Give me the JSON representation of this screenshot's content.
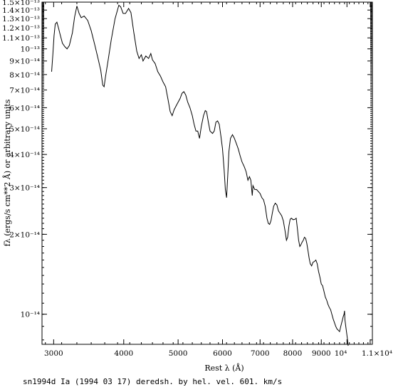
{
  "chart_data": {
    "type": "line",
    "title": "",
    "xlabel": "Rest λ (Å)",
    "ylabel": "fλ (ergs/s cm**2 Å) or arbitrary units",
    "caption": "sn1994d Ia (1994 03 17) deredsh. by hel. vel.   601. km/s",
    "x_scale": "log",
    "y_scale": "log",
    "xlim": [
      2860,
      11100
    ],
    "ylim": [
      7.7e-15,
      1.5e-13
    ],
    "x_ticks": [
      {
        "value": 3000,
        "label": "3000"
      },
      {
        "value": 4000,
        "label": "4000"
      },
      {
        "value": 5000,
        "label": "5000"
      },
      {
        "value": 6000,
        "label": "6000"
      },
      {
        "value": 7000,
        "label": "7000"
      },
      {
        "value": 8000,
        "label": "8000"
      },
      {
        "value": 9000,
        "label": "9000"
      },
      {
        "value": 10000,
        "label": "10⁴"
      },
      {
        "value": 11000,
        "label": "1.1×10⁴"
      }
    ],
    "y_ticks": [
      {
        "value": 1e-14,
        "label": "10⁻¹⁴"
      },
      {
        "value": 2e-14,
        "label": "2×10⁻¹⁴"
      },
      {
        "value": 3e-14,
        "label": "3×10⁻¹⁴"
      },
      {
        "value": 4e-14,
        "label": "4×10⁻¹⁴"
      },
      {
        "value": 5e-14,
        "label": "5×10⁻¹⁴"
      },
      {
        "value": 6e-14,
        "label": "6×10⁻¹⁴"
      },
      {
        "value": 7e-14,
        "label": "7×10⁻¹⁴"
      },
      {
        "value": 8e-14,
        "label": "8×10⁻¹⁴"
      },
      {
        "value": 9e-14,
        "label": "9×10⁻¹⁴"
      },
      {
        "value": 1e-13,
        "label": "10⁻¹³"
      },
      {
        "value": 1.1e-13,
        "label": "1.1×10⁻¹³"
      },
      {
        "value": 1.2e-13,
        "label": "1.2×10⁻¹³"
      },
      {
        "value": 1.3e-13,
        "label": "1.3×10⁻¹³"
      },
      {
        "value": 1.4e-13,
        "label": "1.4×10⁻¹³"
      },
      {
        "value": 1.5e-13,
        "label": "1.5×10⁻¹³"
      }
    ],
    "grid": false,
    "series": [
      {
        "color": "#000000",
        "points": [
          [
            2975,
            8.2e-14
          ],
          [
            2990,
            9.5e-14
          ],
          [
            3005,
            1.12e-13
          ],
          [
            3020,
            1.24e-13
          ],
          [
            3040,
            1.26e-13
          ],
          [
            3060,
            1.2e-13
          ],
          [
            3085,
            1.12e-13
          ],
          [
            3110,
            1.05e-13
          ],
          [
            3140,
            1.02e-13
          ],
          [
            3170,
            1e-13
          ],
          [
            3200,
            1.03e-13
          ],
          [
            3240,
            1.15e-13
          ],
          [
            3270,
            1.32e-13
          ],
          [
            3300,
            1.45e-13
          ],
          [
            3330,
            1.36e-13
          ],
          [
            3360,
            1.31e-13
          ],
          [
            3400,
            1.33e-13
          ],
          [
            3450,
            1.28e-13
          ],
          [
            3500,
            1.17e-13
          ],
          [
            3550,
            1.04e-13
          ],
          [
            3600,
            9.2e-14
          ],
          [
            3640,
            8.3e-14
          ],
          [
            3670,
            7.3e-14
          ],
          [
            3690,
            7.2e-14
          ],
          [
            3710,
            7.8e-14
          ],
          [
            3750,
            9e-14
          ],
          [
            3800,
            1.08e-13
          ],
          [
            3860,
            1.3e-13
          ],
          [
            3920,
            1.46e-13
          ],
          [
            3950,
            1.44e-13
          ],
          [
            3990,
            1.36e-13
          ],
          [
            4030,
            1.36e-13
          ],
          [
            4080,
            1.42e-13
          ],
          [
            4120,
            1.37e-13
          ],
          [
            4170,
            1.15e-13
          ],
          [
            4220,
            9.8e-14
          ],
          [
            4260,
            9.2e-14
          ],
          [
            4300,
            9.5e-14
          ],
          [
            4330,
            9e-14
          ],
          [
            4380,
            9.4e-14
          ],
          [
            4430,
            9.2e-14
          ],
          [
            4470,
            9.6e-14
          ],
          [
            4500,
            9.1e-14
          ],
          [
            4550,
            8.8e-14
          ],
          [
            4600,
            8.2e-14
          ],
          [
            4650,
            7.9e-14
          ],
          [
            4700,
            7.5e-14
          ],
          [
            4750,
            7.2e-14
          ],
          [
            4800,
            6.4e-14
          ],
          [
            4840,
            5.8e-14
          ],
          [
            4880,
            5.6e-14
          ],
          [
            4920,
            5.9e-14
          ],
          [
            4980,
            6.2e-14
          ],
          [
            5040,
            6.5e-14
          ],
          [
            5080,
            6.8e-14
          ],
          [
            5120,
            6.9e-14
          ],
          [
            5160,
            6.7e-14
          ],
          [
            5200,
            6.3e-14
          ],
          [
            5250,
            6e-14
          ],
          [
            5300,
            5.6e-14
          ],
          [
            5340,
            5.2e-14
          ],
          [
            5380,
            4.9e-14
          ],
          [
            5420,
            4.9e-14
          ],
          [
            5460,
            4.6e-14
          ],
          [
            5500,
            5.1e-14
          ],
          [
            5550,
            5.6e-14
          ],
          [
            5590,
            5.85e-14
          ],
          [
            5620,
            5.8e-14
          ],
          [
            5660,
            5.3e-14
          ],
          [
            5700,
            4.9e-14
          ],
          [
            5760,
            4.8e-14
          ],
          [
            5800,
            4.9e-14
          ],
          [
            5840,
            5.3e-14
          ],
          [
            5880,
            5.35e-14
          ],
          [
            5920,
            5.2e-14
          ],
          [
            5960,
            4.7e-14
          ],
          [
            6000,
            4.2e-14
          ],
          [
            6040,
            3.5e-14
          ],
          [
            6070,
            2.95e-14
          ],
          [
            6100,
            2.75e-14
          ],
          [
            6130,
            3.3e-14
          ],
          [
            6160,
            4.1e-14
          ],
          [
            6200,
            4.6e-14
          ],
          [
            6250,
            4.75e-14
          ],
          [
            6300,
            4.6e-14
          ],
          [
            6350,
            4.4e-14
          ],
          [
            6400,
            4.2e-14
          ],
          [
            6450,
            3.95e-14
          ],
          [
            6500,
            3.75e-14
          ],
          [
            6560,
            3.6e-14
          ],
          [
            6610,
            3.45e-14
          ],
          [
            6660,
            3.2e-14
          ],
          [
            6700,
            3.3e-14
          ],
          [
            6740,
            3.2e-14
          ],
          [
            6780,
            2.8e-14
          ],
          [
            6800,
            3.05e-14
          ],
          [
            6850,
            2.95e-14
          ],
          [
            6900,
            2.95e-14
          ],
          [
            6950,
            2.9e-14
          ],
          [
            7000,
            2.85e-14
          ],
          [
            7050,
            2.75e-14
          ],
          [
            7100,
            2.7e-14
          ],
          [
            7150,
            2.55e-14
          ],
          [
            7200,
            2.3e-14
          ],
          [
            7240,
            2.2e-14
          ],
          [
            7280,
            2.18e-14
          ],
          [
            7320,
            2.25e-14
          ],
          [
            7360,
            2.4e-14
          ],
          [
            7400,
            2.55e-14
          ],
          [
            7450,
            2.62e-14
          ],
          [
            7500,
            2.58e-14
          ],
          [
            7550,
            2.45e-14
          ],
          [
            7600,
            2.4e-14
          ],
          [
            7650,
            2.35e-14
          ],
          [
            7700,
            2.25e-14
          ],
          [
            7760,
            2.05e-14
          ],
          [
            7800,
            1.9e-14
          ],
          [
            7840,
            1.95e-14
          ],
          [
            7880,
            2.15e-14
          ],
          [
            7920,
            2.28e-14
          ],
          [
            7960,
            2.3e-14
          ],
          [
            8020,
            2.27e-14
          ],
          [
            8080,
            2.28e-14
          ],
          [
            8120,
            2.3e-14
          ],
          [
            8160,
            2.1e-14
          ],
          [
            8200,
            1.9e-14
          ],
          [
            8240,
            1.8e-14
          ],
          [
            8280,
            1.83e-14
          ],
          [
            8320,
            1.87e-14
          ],
          [
            8360,
            1.9e-14
          ],
          [
            8400,
            1.95e-14
          ],
          [
            8440,
            1.93e-14
          ],
          [
            8480,
            1.85e-14
          ],
          [
            8520,
            1.74e-14
          ],
          [
            8560,
            1.63e-14
          ],
          [
            8600,
            1.55e-14
          ],
          [
            8650,
            1.52e-14
          ],
          [
            8700,
            1.57e-14
          ],
          [
            8750,
            1.58e-14
          ],
          [
            8800,
            1.6e-14
          ],
          [
            8850,
            1.55e-14
          ],
          [
            8900,
            1.45e-14
          ],
          [
            8950,
            1.38e-14
          ],
          [
            9000,
            1.3e-14
          ],
          [
            9050,
            1.28e-14
          ],
          [
            9100,
            1.22e-14
          ],
          [
            9150,
            1.16e-14
          ],
          [
            9200,
            1.13e-14
          ],
          [
            9250,
            1.09e-14
          ],
          [
            9300,
            1.06e-14
          ],
          [
            9350,
            1.04e-14
          ],
          [
            9400,
            1e-14
          ],
          [
            9450,
            9.6e-15
          ],
          [
            9500,
            9.3e-15
          ],
          [
            9550,
            9e-15
          ],
          [
            9600,
            8.8e-15
          ],
          [
            9650,
            8.7e-15
          ],
          [
            9700,
            8.6e-15
          ],
          [
            9750,
            9e-15
          ],
          [
            9800,
            9.4e-15
          ],
          [
            9850,
            9.8e-15
          ],
          [
            9880,
            1e-14
          ],
          [
            9900,
            1.03e-14
          ],
          [
            9920,
            9.5e-15
          ],
          [
            9950,
            9e-15
          ],
          [
            9980,
            8.6e-15
          ],
          [
            10010,
            8.2e-15
          ],
          [
            10030,
            7.9e-15
          ],
          [
            10050,
            7.6e-15
          ]
        ]
      }
    ]
  }
}
